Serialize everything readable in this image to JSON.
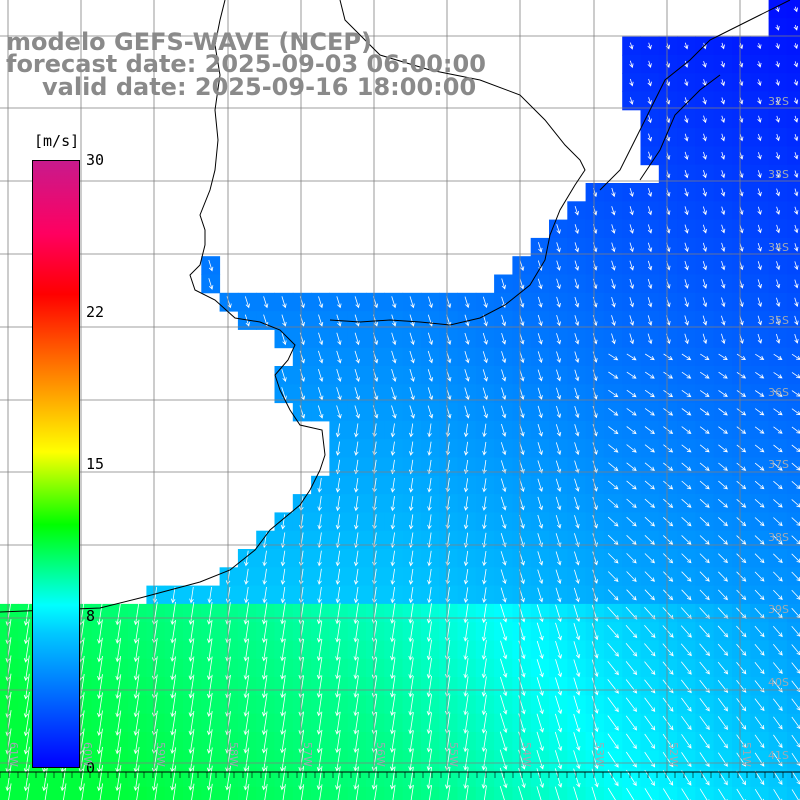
{
  "title": {
    "line1": "modelo GEFS-WAVE (NCEP)",
    "line2": "forecast date: 2025-09-03 06:00:00",
    "line3": "valid date: 2025-09-16 18:00:00"
  },
  "colorbar": {
    "unit": "[m/s]",
    "ticks": [
      "30",
      "22",
      "15",
      "8",
      "0"
    ],
    "tick_values": [
      30,
      22,
      15,
      8,
      0
    ],
    "range": [
      0,
      30
    ],
    "colors": [
      "#0000ff",
      "#00c8ff",
      "#00ffff",
      "#00ff00",
      "#ffff00",
      "#ff8000",
      "#ff0000",
      "#c81a8c"
    ]
  },
  "grid": {
    "lat_labels": [
      "32S",
      "33S",
      "34S",
      "35S",
      "36S",
      "37S",
      "38S",
      "39S",
      "40S",
      "41S"
    ],
    "lon_labels": [
      "61W",
      "60W",
      "59W",
      "58W",
      "57W",
      "56W",
      "55W",
      "54W",
      "53W",
      "52W",
      "51W"
    ],
    "lat_range": [
      -41,
      -31
    ],
    "lon_range": [
      -61.5,
      -50.5
    ]
  },
  "colors": {
    "land": "#ffffff",
    "coast": "#000000",
    "grid": "#7f7f7f",
    "arrow": "#ffffff",
    "title": "#8a8a8a"
  }
}
